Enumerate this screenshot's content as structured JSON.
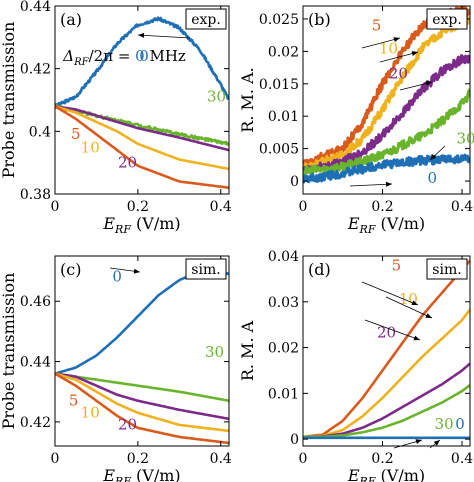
{
  "chart_data": [
    {
      "panel": "(a)",
      "tag": "exp.",
      "type": "line",
      "ylabel": "Probe transmission",
      "xlabel": "E_RF (V/m)",
      "xlim": [
        0,
        0.42
      ],
      "ylim": [
        0.38,
        0.44
      ],
      "xticks": [
        "0",
        "0.2",
        "0.4"
      ],
      "xtick_values": [
        0,
        0.2,
        0.4
      ],
      "yticks": [
        "0.38",
        "0.4",
        "0.42",
        "0.44"
      ],
      "ytick_values": [
        0.38,
        0.4,
        0.42,
        0.44
      ],
      "annotation": "Δ_RF/2π = 0 MHz",
      "series": [
        {
          "name": "0",
          "color": "#1f6fb5",
          "noisy": true,
          "x": [
            0,
            0.05,
            0.1,
            0.15,
            0.2,
            0.25,
            0.3,
            0.35,
            0.4,
            0.42
          ],
          "y": [
            0.408,
            0.411,
            0.419,
            0.428,
            0.434,
            0.436,
            0.433,
            0.426,
            0.415,
            0.41
          ]
        },
        {
          "name": "30",
          "color": "#6ab42d",
          "noisy": true,
          "x": [
            0,
            0.1,
            0.2,
            0.3,
            0.42
          ],
          "y": [
            0.408,
            0.405,
            0.402,
            0.399,
            0.396
          ]
        },
        {
          "name": "20",
          "color": "#7d2b8b",
          "noisy": false,
          "x": [
            0,
            0.05,
            0.1,
            0.15,
            0.2,
            0.3,
            0.42
          ],
          "y": [
            0.408,
            0.407,
            0.405,
            0.403,
            0.401,
            0.398,
            0.394
          ]
        },
        {
          "name": "10",
          "color": "#efb21e",
          "noisy": false,
          "x": [
            0,
            0.05,
            0.1,
            0.15,
            0.2,
            0.3,
            0.42
          ],
          "y": [
            0.408,
            0.406,
            0.403,
            0.4,
            0.396,
            0.391,
            0.388
          ]
        },
        {
          "name": "5",
          "color": "#d95a1b",
          "noisy": false,
          "x": [
            0,
            0.05,
            0.1,
            0.15,
            0.2,
            0.3,
            0.42
          ],
          "y": [
            0.408,
            0.404,
            0.399,
            0.394,
            0.389,
            0.384,
            0.382
          ]
        }
      ],
      "labels": [
        {
          "text": "0",
          "color": "#1f6fb5",
          "x": 0.215,
          "y": 0.4225
        },
        {
          "text": "30",
          "color": "#6ab42d",
          "x": 0.39,
          "y": 0.4095
        },
        {
          "text": "5",
          "color": "#d95a1b",
          "x": 0.05,
          "y": 0.3975
        },
        {
          "text": "10",
          "color": "#efb21e",
          "x": 0.085,
          "y": 0.3932
        },
        {
          "text": "20",
          "color": "#7d2b8b",
          "x": 0.175,
          "y": 0.3885
        }
      ]
    },
    {
      "panel": "(b)",
      "tag": "exp.",
      "type": "line",
      "ylabel": "R. M. A.",
      "xlabel": "E_RF (V/m)",
      "xlim": [
        0,
        0.42
      ],
      "ylim": [
        -0.002,
        0.027
      ],
      "xticks": [
        "0",
        "0.2",
        "0.4"
      ],
      "xtick_values": [
        0,
        0.2,
        0.4
      ],
      "yticks": [
        "0",
        "0.005",
        "0.01",
        "0.015",
        "0.02",
        "0.025"
      ],
      "ytick_values": [
        0,
        0.005,
        0.01,
        0.015,
        0.02,
        0.025
      ],
      "series": [
        {
          "name": "5",
          "color": "#d95a1b",
          "noisy": true,
          "x": [
            0,
            0.1,
            0.15,
            0.2,
            0.25,
            0.3,
            0.35,
            0.4,
            0.42
          ],
          "y": [
            0.0025,
            0.005,
            0.009,
            0.015,
            0.02,
            0.024,
            0.0258,
            0.0262,
            0.026
          ]
        },
        {
          "name": "10",
          "color": "#efb21e",
          "noisy": true,
          "x": [
            0,
            0.1,
            0.15,
            0.2,
            0.25,
            0.3,
            0.35,
            0.4,
            0.42
          ],
          "y": [
            0.002,
            0.004,
            0.0065,
            0.011,
            0.016,
            0.0205,
            0.023,
            0.0245,
            0.0248
          ]
        },
        {
          "name": "20",
          "color": "#7d2b8b",
          "noisy": true,
          "x": [
            0,
            0.1,
            0.15,
            0.2,
            0.25,
            0.3,
            0.35,
            0.4,
            0.42
          ],
          "y": [
            0.0015,
            0.003,
            0.0045,
            0.007,
            0.0105,
            0.014,
            0.017,
            0.0188,
            0.019
          ]
        },
        {
          "name": "30",
          "color": "#6ab42d",
          "noisy": true,
          "x": [
            0,
            0.1,
            0.15,
            0.2,
            0.25,
            0.3,
            0.35,
            0.4,
            0.42
          ],
          "y": [
            0.0015,
            0.0022,
            0.003,
            0.004,
            0.0055,
            0.007,
            0.0092,
            0.012,
            0.0135
          ]
        },
        {
          "name": "0",
          "color": "#1f6fb5",
          "noisy": true,
          "x": [
            0,
            0.1,
            0.2,
            0.3,
            0.42
          ],
          "y": [
            0.0002,
            0.0012,
            0.0025,
            0.0032,
            0.0035
          ]
        }
      ],
      "labels": [
        {
          "text": "5",
          "color": "#d95a1b",
          "x": 0.185,
          "y": 0.0232
        },
        {
          "text": "10",
          "color": "#efb21e",
          "x": 0.215,
          "y": 0.0197
        },
        {
          "text": "20",
          "color": "#7d2b8b",
          "x": 0.24,
          "y": 0.0158
        },
        {
          "text": "30",
          "color": "#6ab42d",
          "x": 0.41,
          "y": 0.0058
        },
        {
          "text": "0",
          "color": "#1f6fb5",
          "x": 0.325,
          "y": -0.0003
        }
      ]
    },
    {
      "panel": "(c)",
      "tag": "sim.",
      "type": "line",
      "ylabel": "Probe transmission",
      "xlabel": "E_RF (V/m)",
      "xlim": [
        0,
        0.42
      ],
      "ylim": [
        0.412,
        0.475
      ],
      "xticks": [
        "0",
        "0.2",
        "0.4"
      ],
      "xtick_values": [
        0,
        0.2,
        0.4
      ],
      "yticks": [
        "0.42",
        "0.44",
        "0.46"
      ],
      "ytick_values": [
        0.42,
        0.44,
        0.46
      ],
      "series": [
        {
          "name": "0",
          "color": "#1f6fb5",
          "noisy": false,
          "x": [
            0,
            0.05,
            0.1,
            0.15,
            0.2,
            0.25,
            0.3,
            0.35,
            0.4,
            0.42
          ],
          "y": [
            0.436,
            0.438,
            0.442,
            0.448,
            0.455,
            0.462,
            0.467,
            0.47,
            0.47,
            0.469
          ]
        },
        {
          "name": "30",
          "color": "#6ab42d",
          "noisy": false,
          "x": [
            0,
            0.1,
            0.2,
            0.3,
            0.42
          ],
          "y": [
            0.436,
            0.434,
            0.432,
            0.43,
            0.427
          ]
        },
        {
          "name": "20",
          "color": "#7d2b8b",
          "noisy": false,
          "x": [
            0,
            0.05,
            0.1,
            0.15,
            0.2,
            0.3,
            0.42
          ],
          "y": [
            0.436,
            0.435,
            0.432,
            0.429,
            0.427,
            0.424,
            0.421
          ]
        },
        {
          "name": "10",
          "color": "#efb21e",
          "noisy": false,
          "x": [
            0,
            0.05,
            0.1,
            0.15,
            0.2,
            0.3,
            0.42
          ],
          "y": [
            0.436,
            0.434,
            0.43,
            0.426,
            0.423,
            0.419,
            0.417
          ]
        },
        {
          "name": "5",
          "color": "#d95a1b",
          "noisy": false,
          "x": [
            0,
            0.05,
            0.1,
            0.15,
            0.2,
            0.3,
            0.42
          ],
          "y": [
            0.436,
            0.432,
            0.427,
            0.422,
            0.418,
            0.415,
            0.413
          ]
        }
      ],
      "labels": [
        {
          "text": "0",
          "color": "#1f6fb5",
          "x": 0.15,
          "y": 0.4665
        },
        {
          "text": "30",
          "color": "#6ab42d",
          "x": 0.385,
          "y": 0.4415
        },
        {
          "text": "5",
          "color": "#d95a1b",
          "x": 0.045,
          "y": 0.4255
        },
        {
          "text": "10",
          "color": "#efb21e",
          "x": 0.085,
          "y": 0.4215
        },
        {
          "text": "20",
          "color": "#7d2b8b",
          "x": 0.175,
          "y": 0.4175
        }
      ]
    },
    {
      "panel": "(d)",
      "tag": "sim.",
      "type": "line",
      "ylabel": "R. M. A",
      "xlabel": "E_RF (V/m)",
      "xlim": [
        0,
        0.42
      ],
      "ylim": [
        -0.0015,
        0.04
      ],
      "xticks": [
        "0",
        "0.2",
        "0.4"
      ],
      "xtick_values": [
        0,
        0.2,
        0.4
      ],
      "yticks": [
        "0",
        "0.01",
        "0.02",
        "0.03",
        "0.04"
      ],
      "ytick_values": [
        0,
        0.01,
        0.02,
        0.03,
        0.04
      ],
      "series": [
        {
          "name": "5",
          "color": "#d95a1b",
          "noisy": false,
          "x": [
            0,
            0.05,
            0.1,
            0.15,
            0.2,
            0.25,
            0.3,
            0.35,
            0.4,
            0.42
          ],
          "y": [
            0.0005,
            0.001,
            0.004,
            0.009,
            0.015,
            0.021,
            0.027,
            0.032,
            0.037,
            0.039
          ]
        },
        {
          "name": "10",
          "color": "#efb21e",
          "noisy": false,
          "x": [
            0,
            0.05,
            0.1,
            0.15,
            0.2,
            0.25,
            0.3,
            0.35,
            0.4,
            0.42
          ],
          "y": [
            0.0005,
            0.0007,
            0.002,
            0.005,
            0.009,
            0.0135,
            0.018,
            0.022,
            0.026,
            0.0283
          ]
        },
        {
          "name": "20",
          "color": "#7d2b8b",
          "noisy": false,
          "x": [
            0,
            0.05,
            0.1,
            0.15,
            0.2,
            0.25,
            0.3,
            0.35,
            0.4,
            0.42
          ],
          "y": [
            0.0005,
            0.0006,
            0.0012,
            0.0025,
            0.0045,
            0.007,
            0.0095,
            0.012,
            0.015,
            0.0165
          ]
        },
        {
          "name": "30",
          "color": "#6ab42d",
          "noisy": false,
          "x": [
            0,
            0.05,
            0.1,
            0.15,
            0.2,
            0.25,
            0.3,
            0.35,
            0.4,
            0.42
          ],
          "y": [
            0.0005,
            0.0005,
            0.0008,
            0.0015,
            0.0025,
            0.004,
            0.006,
            0.008,
            0.0105,
            0.0118
          ]
        },
        {
          "name": "0",
          "color": "#1f6fb5",
          "noisy": false,
          "x": [
            0,
            0.1,
            0.2,
            0.3,
            0.42
          ],
          "y": [
            0.0003,
            0.0003,
            0.0003,
            0.0003,
            0.0003
          ]
        }
      ],
      "labels": [
        {
          "text": "5",
          "color": "#d95a1b",
          "x": 0.235,
          "y": 0.0368
        },
        {
          "text": "10",
          "color": "#efb21e",
          "x": 0.265,
          "y": 0.0295
        },
        {
          "text": "20",
          "color": "#7d2b8b",
          "x": 0.21,
          "y": 0.0222
        },
        {
          "text": "30",
          "color": "#6ab42d",
          "x": 0.355,
          "y": 0.0022
        },
        {
          "text": "0",
          "color": "#1f6fb5",
          "x": 0.395,
          "y": 0.0022
        }
      ]
    }
  ]
}
